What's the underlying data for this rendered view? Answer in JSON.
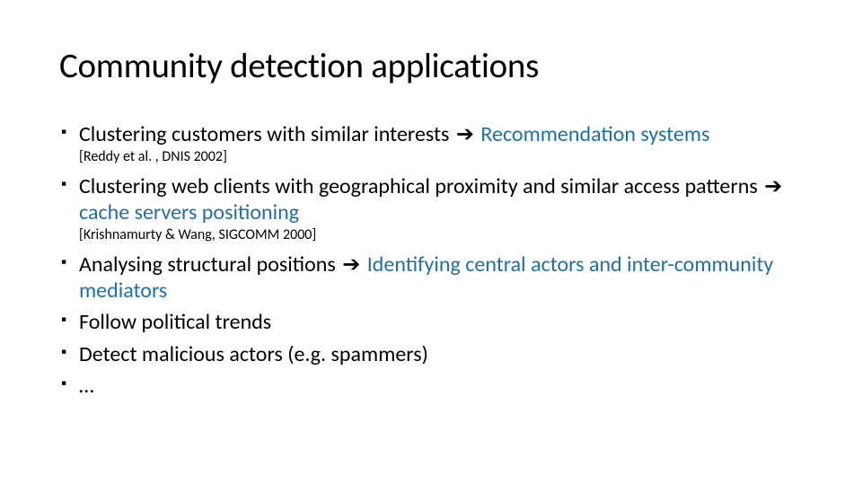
{
  "title": "Community detection applications",
  "colors": {
    "highlight": "#1f6fa8",
    "text": "#000000",
    "background": "#ffffff"
  },
  "typography": {
    "title_fontsize": 39,
    "bullet_fontsize": 24,
    "citation_fontsize": 16,
    "font_family": "Calibri"
  },
  "bullets": [
    {
      "pre": "Clustering customers with similar interests ",
      "arrow": "➔",
      "post": " Recommendation systems",
      "citation": "[Reddy et al. , DNIS 2002]"
    },
    {
      "pre": "Clustering web clients with geographical proximity and similar access patterns ",
      "arrow": "➔",
      "post": " cache servers positioning",
      "citation": "[Krishnamurty & Wang, SIGCOMM 2000]"
    },
    {
      "pre": "Analysing structural positions ",
      "arrow": "➔",
      "post": " Identifying central actors and inter-community mediators",
      "citation": ""
    },
    {
      "pre": "Follow political trends",
      "arrow": "",
      "post": "",
      "citation": ""
    },
    {
      "pre": "Detect malicious actors (e.g. spammers)",
      "arrow": "",
      "post": "",
      "citation": ""
    },
    {
      "pre": "…",
      "arrow": "",
      "post": "",
      "citation": ""
    }
  ]
}
